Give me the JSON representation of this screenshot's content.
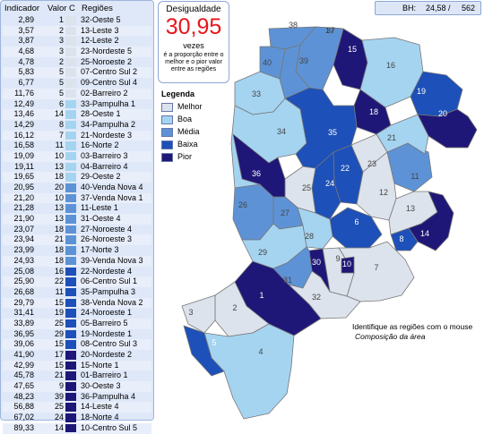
{
  "colors": {
    "melhor": "#dde3ec",
    "boa": "#a5d4f1",
    "media": "#5d93d6",
    "baixa": "#1d50b8",
    "pior": "#1f1777",
    "value_red": "#e8161b"
  },
  "panel": {
    "headers": {
      "indicador": "Indicador",
      "valor": "Valor",
      "c": "C",
      "regioes": "Regiões"
    },
    "rows": [
      {
        "ind": "2,89",
        "val": "1",
        "reg": "32-Oeste 5",
        "cls": "melhor"
      },
      {
        "ind": "3,57",
        "val": "2",
        "reg": "13-Leste 3",
        "cls": "melhor"
      },
      {
        "ind": "3,87",
        "val": "3",
        "reg": "12-Leste 2",
        "cls": "melhor"
      },
      {
        "ind": "4,68",
        "val": "3",
        "reg": "23-Nordeste 5",
        "cls": "melhor"
      },
      {
        "ind": "4,78",
        "val": "2",
        "reg": "25-Noroeste 2",
        "cls": "melhor"
      },
      {
        "ind": "5,83",
        "val": "5",
        "reg": "07-Centro Sul 2",
        "cls": "melhor"
      },
      {
        "ind": "6,77",
        "val": "5",
        "reg": "09-Centro Sul 4",
        "cls": "melhor"
      },
      {
        "ind": "11,76",
        "val": "5",
        "reg": "02-Barreiro 2",
        "cls": "melhor"
      },
      {
        "ind": "12,49",
        "val": "6",
        "reg": "33-Pampulha 1",
        "cls": "boa"
      },
      {
        "ind": "13,46",
        "val": "14",
        "reg": "28-Oeste 1",
        "cls": "boa"
      },
      {
        "ind": "14,29",
        "val": "8",
        "reg": "34-Pampulha 2",
        "cls": "boa"
      },
      {
        "ind": "16,12",
        "val": "7",
        "reg": "21-Nordeste 3",
        "cls": "boa"
      },
      {
        "ind": "16,58",
        "val": "11",
        "reg": "16-Norte 2",
        "cls": "boa"
      },
      {
        "ind": "19,09",
        "val": "10",
        "reg": "03-Barreiro 3",
        "cls": "boa"
      },
      {
        "ind": "19,11",
        "val": "13",
        "reg": "04-Barreiro 4",
        "cls": "boa"
      },
      {
        "ind": "19,65",
        "val": "18",
        "reg": "29-Oeste 2",
        "cls": "boa"
      },
      {
        "ind": "20,95",
        "val": "20",
        "reg": "40-Venda Nova 4",
        "cls": "media"
      },
      {
        "ind": "21,20",
        "val": "10",
        "reg": "37-Venda Nova 1",
        "cls": "media"
      },
      {
        "ind": "21,28",
        "val": "13",
        "reg": "11-Leste 1",
        "cls": "media"
      },
      {
        "ind": "21,90",
        "val": "13",
        "reg": "31-Oeste 4",
        "cls": "media"
      },
      {
        "ind": "23,07",
        "val": "18",
        "reg": "27-Noroeste 4",
        "cls": "media"
      },
      {
        "ind": "23,94",
        "val": "21",
        "reg": "26-Noroeste 3",
        "cls": "media"
      },
      {
        "ind": "23,99",
        "val": "18",
        "reg": "17-Norte 3",
        "cls": "media"
      },
      {
        "ind": "24,93",
        "val": "18",
        "reg": "39-Venda Nova 3",
        "cls": "media"
      },
      {
        "ind": "25,08",
        "val": "16",
        "reg": "22-Nordeste 4",
        "cls": "baixa"
      },
      {
        "ind": "25,90",
        "val": "22",
        "reg": "06-Centro Sul 1",
        "cls": "baixa"
      },
      {
        "ind": "26,68",
        "val": "11",
        "reg": "35-Pampulha 3",
        "cls": "baixa"
      },
      {
        "ind": "29,79",
        "val": "15",
        "reg": "38-Venda Nova 2",
        "cls": "baixa"
      },
      {
        "ind": "31,41",
        "val": "19",
        "reg": "24-Noroeste 1",
        "cls": "baixa"
      },
      {
        "ind": "33,89",
        "val": "25",
        "reg": "05-Barreiro 5",
        "cls": "baixa"
      },
      {
        "ind": "36,95",
        "val": "29",
        "reg": "19-Nordeste 1",
        "cls": "baixa"
      },
      {
        "ind": "39,06",
        "val": "15",
        "reg": "08-Centro Sul 3",
        "cls": "baixa"
      },
      {
        "ind": "41,90",
        "val": "17",
        "reg": "20-Nordeste 2",
        "cls": "pior"
      },
      {
        "ind": "42,99",
        "val": "15",
        "reg": "15-Norte 1",
        "cls": "pior"
      },
      {
        "ind": "45,78",
        "val": "21",
        "reg": "01-Barreiro 1",
        "cls": "pior"
      },
      {
        "ind": "47,65",
        "val": "9",
        "reg": "30-Oeste 3",
        "cls": "pior"
      },
      {
        "ind": "48,23",
        "val": "39",
        "reg": "36-Pampulha 4",
        "cls": "pior"
      },
      {
        "ind": "56,88",
        "val": "25",
        "reg": "14-Leste 4",
        "cls": "pior"
      },
      {
        "ind": "67,02",
        "val": "24",
        "reg": "18-Norte 4",
        "cls": "pior"
      },
      {
        "ind": "89,33",
        "val": "14",
        "reg": "10-Centro Sul 5",
        "cls": "pior"
      }
    ]
  },
  "desigualdade": {
    "title": "Desigualdade",
    "value": "30,95",
    "vezes": "vezes",
    "note": "é a proporção entre o melhor e o pior valor entre as regiões"
  },
  "bh": {
    "label": "BH:",
    "value1": "24,58 /",
    "value2": "562"
  },
  "legend": {
    "title": "Legenda",
    "items": [
      {
        "label": "Melhor",
        "cls": "melhor"
      },
      {
        "label": "Boa",
        "cls": "boa"
      },
      {
        "label": "Média",
        "cls": "media"
      },
      {
        "label": "Baixa",
        "cls": "baixa"
      },
      {
        "label": "Pior",
        "cls": "pior"
      }
    ]
  },
  "map_labels": [
    "1",
    "2",
    "3",
    "4",
    "5",
    "6",
    "7",
    "8",
    "9",
    "10",
    "11",
    "12",
    "13",
    "14",
    "15",
    "16",
    "17",
    "18",
    "19",
    "20",
    "21",
    "22",
    "23",
    "24",
    "25",
    "26",
    "27",
    "28",
    "29",
    "30",
    "31",
    "32",
    "33",
    "34",
    "35",
    "36",
    "37",
    "38",
    "39",
    "40"
  ],
  "hint": "Identifique as regiões com o mouse",
  "composition": "Composição da área"
}
